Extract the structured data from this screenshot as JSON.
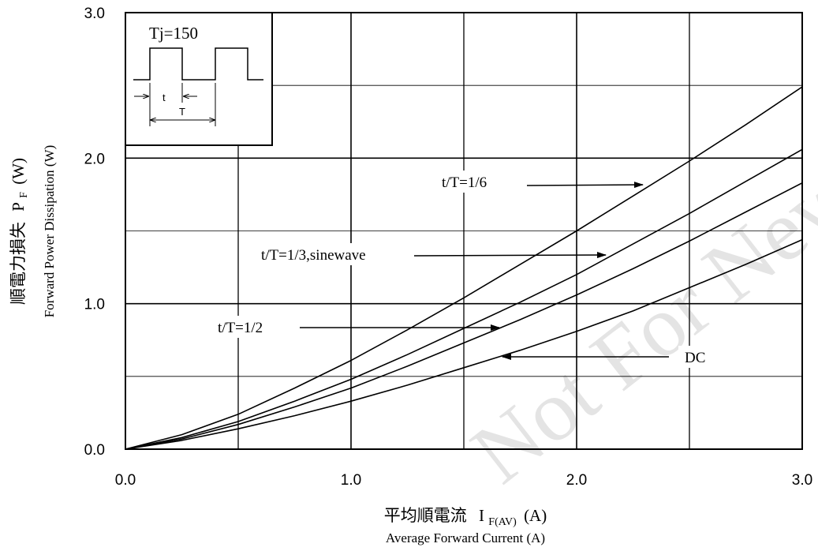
{
  "chart_data": {
    "type": "line",
    "xlabel_jp": "平均順電流",
    "xlabel_sym": "I",
    "xlabel_sub": "F(AV)",
    "xlabel_unit": "(A)",
    "xlabel_en": "Average Forward Current (A)",
    "ylabel_jp": "順電力損失",
    "ylabel_sym": "P",
    "ylabel_sub": "F",
    "ylabel_unit": "(W)",
    "ylabel_en": "Forward Power Dissipation (W)",
    "xlim": [
      0,
      3
    ],
    "ylim": [
      0,
      3
    ],
    "x_ticks": [
      "0.0",
      "1.0",
      "2.0",
      "3.0"
    ],
    "y_ticks": [
      "0.0",
      "1.0",
      "2.0",
      "3.0"
    ],
    "grid": true,
    "inset": {
      "label": "Tj=150",
      "t_label": "t",
      "T_label": "T"
    },
    "annotations": [
      {
        "text": "t/T=1/6",
        "arrow_to": [
          2.3,
          1.82
        ]
      },
      {
        "text": "t/T=1/3,sinewave",
        "arrow_to": [
          2.13,
          1.33
        ]
      },
      {
        "text": "t/T=1/2",
        "arrow_to": [
          1.66,
          0.83
        ]
      },
      {
        "text": "DC",
        "arrow_to": [
          1.67,
          0.64
        ]
      }
    ],
    "watermark": "Not For New Design",
    "series": [
      {
        "points": [
          [
            0,
            0
          ],
          [
            0.25,
            0.1
          ],
          [
            0.5,
            0.24
          ],
          [
            0.75,
            0.42
          ],
          [
            1.0,
            0.61
          ],
          [
            1.25,
            0.82
          ],
          [
            1.5,
            1.04
          ],
          [
            1.75,
            1.27
          ],
          [
            2.0,
            1.5
          ],
          [
            2.25,
            1.74
          ],
          [
            2.5,
            1.98
          ],
          [
            2.75,
            2.23
          ],
          [
            3.0,
            2.49
          ]
        ]
      },
      {
        "points": [
          [
            0,
            0
          ],
          [
            0.25,
            0.08
          ],
          [
            0.5,
            0.19
          ],
          [
            0.75,
            0.33
          ],
          [
            1.0,
            0.48
          ],
          [
            1.25,
            0.65
          ],
          [
            1.5,
            0.83
          ],
          [
            1.75,
            1.01
          ],
          [
            2.0,
            1.2
          ],
          [
            2.25,
            1.41
          ],
          [
            2.5,
            1.62
          ],
          [
            2.75,
            1.84
          ],
          [
            3.0,
            2.06
          ]
        ]
      },
      {
        "points": [
          [
            0,
            0
          ],
          [
            0.25,
            0.07
          ],
          [
            0.5,
            0.17
          ],
          [
            0.75,
            0.29
          ],
          [
            1.0,
            0.42
          ],
          [
            1.25,
            0.57
          ],
          [
            1.5,
            0.73
          ],
          [
            1.75,
            0.89
          ],
          [
            2.0,
            1.06
          ],
          [
            2.25,
            1.24
          ],
          [
            2.5,
            1.43
          ],
          [
            2.75,
            1.63
          ],
          [
            3.0,
            1.83
          ]
        ]
      },
      {
        "points": [
          [
            0,
            0
          ],
          [
            0.25,
            0.06
          ],
          [
            0.5,
            0.14
          ],
          [
            0.75,
            0.23
          ],
          [
            1.0,
            0.33
          ],
          [
            1.25,
            0.44
          ],
          [
            1.5,
            0.56
          ],
          [
            1.75,
            0.68
          ],
          [
            2.0,
            0.81
          ],
          [
            2.25,
            0.95
          ],
          [
            2.5,
            1.11
          ],
          [
            2.75,
            1.27
          ],
          [
            3.0,
            1.44
          ]
        ]
      }
    ]
  }
}
